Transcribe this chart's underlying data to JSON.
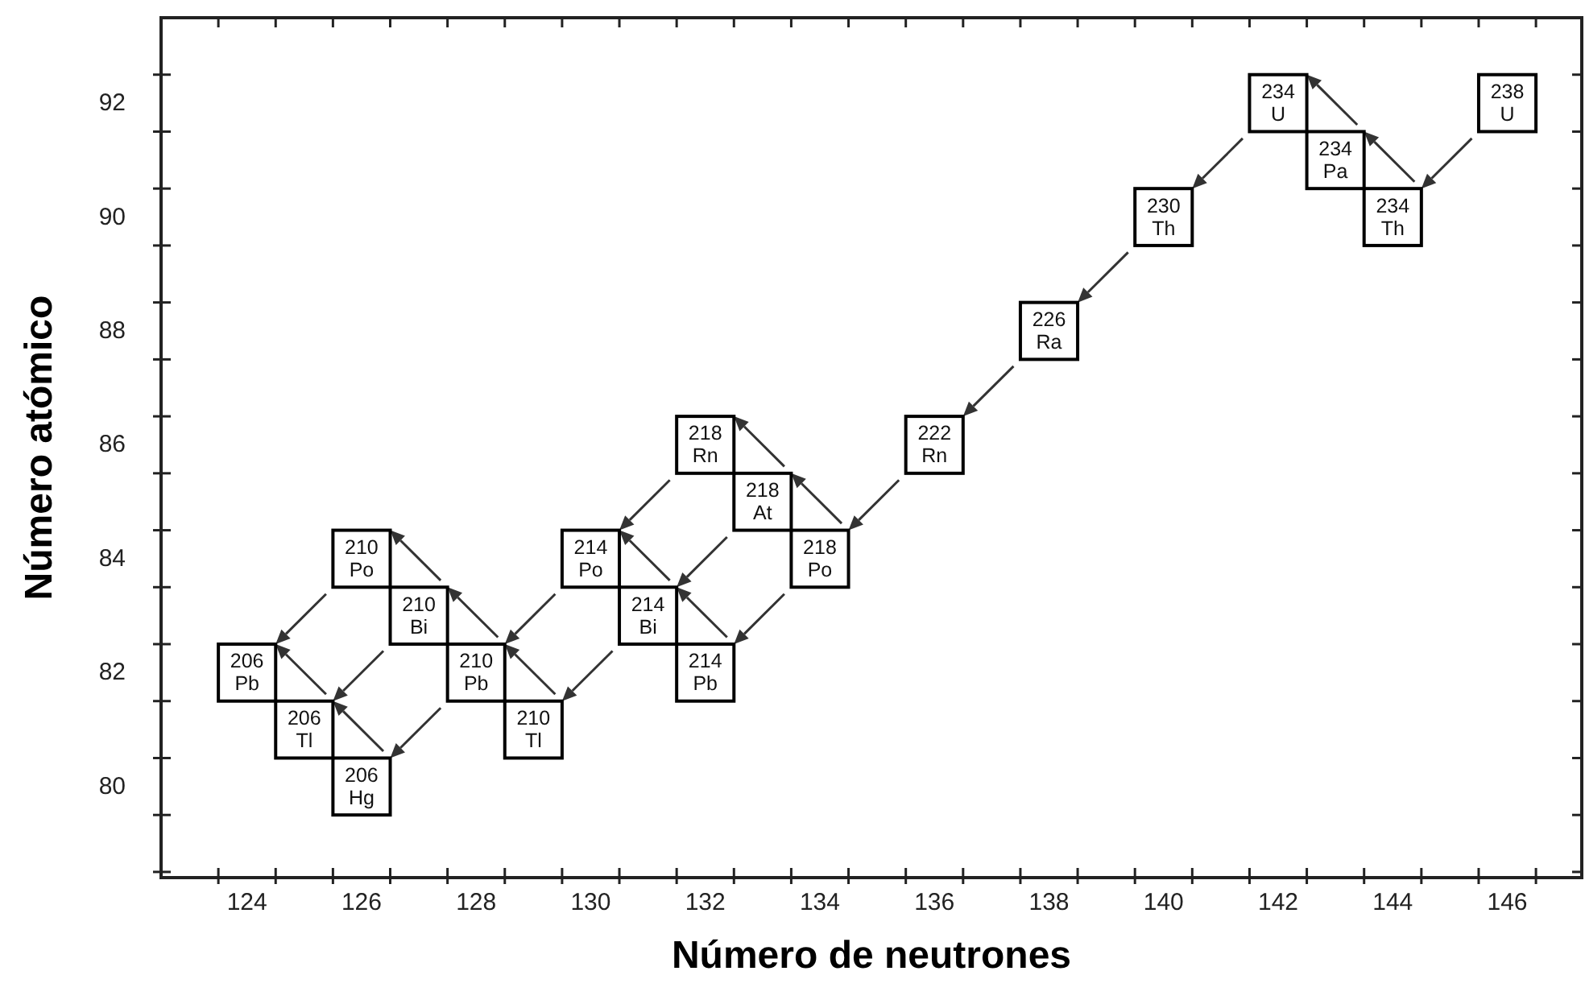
{
  "chart_data": {
    "type": "scatter",
    "xlabel": "Número de neutrones",
    "ylabel": "Número atómico",
    "x": [
      146,
      144,
      143,
      142,
      140,
      138,
      136,
      134,
      133,
      132,
      132,
      131,
      130,
      129,
      128,
      127,
      126,
      126,
      125,
      124
    ],
    "values": [
      92,
      90,
      91,
      92,
      90,
      88,
      86,
      84,
      85,
      86,
      82,
      83,
      84,
      81,
      82,
      83,
      84,
      80,
      81,
      82
    ],
    "color": "#000000",
    "marker": "square",
    "grid": false,
    "xlim": [
      122.5,
      147.3
    ],
    "ylim": [
      78.4,
      93.5
    ],
    "xticks": [
      {
        "value": 123.5,
        "label": null
      },
      124,
      {
        "value": 124.5,
        "label": null
      },
      {
        "value": 125.5,
        "label": null
      },
      126,
      {
        "value": 126.5,
        "label": null
      },
      {
        "value": 127.5,
        "label": null
      },
      128,
      {
        "value": 128.5,
        "label": null
      },
      {
        "value": 129.5,
        "label": null
      },
      130,
      {
        "value": 130.5,
        "label": null
      },
      {
        "value": 131.5,
        "label": null
      },
      132,
      {
        "value": 132.5,
        "label": null
      },
      {
        "value": 133.5,
        "label": null
      },
      134,
      {
        "value": 134.5,
        "label": null
      },
      {
        "value": 135.5,
        "label": null
      },
      136,
      {
        "value": 136.5,
        "label": null
      },
      {
        "value": 137.5,
        "label": null
      },
      138,
      {
        "value": 138.5,
        "label": null
      },
      {
        "value": 139.5,
        "label": null
      },
      140,
      {
        "value": 140.5,
        "label": null
      },
      {
        "value": 141.5,
        "label": null
      },
      142,
      {
        "value": 142.5,
        "label": null
      },
      {
        "value": 143.5,
        "label": null
      },
      144,
      {
        "value": 144.5,
        "label": null
      },
      {
        "value": 145.5,
        "label": null
      },
      146,
      {
        "value": 146.5,
        "label": null
      }
    ],
    "yticks": [
      {
        "value": 78.5,
        "label": null
      },
      {
        "value": 79.5,
        "label": null
      },
      80,
      {
        "value": 80.5,
        "label": null
      },
      {
        "value": 81.5,
        "label": null
      },
      82,
      {
        "value": 82.5,
        "label": null
      },
      {
        "value": 83.5,
        "label": null
      },
      84,
      {
        "value": 84.5,
        "label": null
      },
      {
        "value": 85.5,
        "label": null
      },
      86,
      {
        "value": 86.5,
        "label": null
      },
      {
        "value": 87.5,
        "label": null
      },
      88,
      {
        "value": 88.5,
        "label": null
      },
      {
        "value": 89.5,
        "label": null
      },
      90,
      {
        "value": 90.5,
        "label": null
      },
      {
        "value": 91.5,
        "label": null
      },
      92,
      {
        "value": 92.5,
        "label": null
      }
    ],
    "annotations": [
      {
        "text": "238 U",
        "x": 146,
        "y": 92
      },
      {
        "text": "234 Th",
        "x": 144,
        "y": 90
      },
      {
        "text": "234 Pa",
        "x": 143,
        "y": 91
      },
      {
        "text": "234 U",
        "x": 142,
        "y": 92
      },
      {
        "text": "230 Th",
        "x": 140,
        "y": 90
      },
      {
        "text": "226 Ra",
        "x": 138,
        "y": 88
      },
      {
        "text": "222 Rn",
        "x": 136,
        "y": 86
      },
      {
        "text": "218 Po",
        "x": 134,
        "y": 84
      },
      {
        "text": "218 At",
        "x": 133,
        "y": 85
      },
      {
        "text": "218 Rn",
        "x": 132,
        "y": 86
      },
      {
        "text": "214 Pb",
        "x": 132,
        "y": 82
      },
      {
        "text": "214 Bi",
        "x": 131,
        "y": 83
      },
      {
        "text": "214 Po",
        "x": 130,
        "y": 84
      },
      {
        "text": "210 Tl",
        "x": 129,
        "y": 81
      },
      {
        "text": "210 Pb",
        "x": 128,
        "y": 82
      },
      {
        "text": "210 Bi",
        "x": 127,
        "y": 83
      },
      {
        "text": "210 Po",
        "x": 126,
        "y": 84
      },
      {
        "text": "206 Hg",
        "x": 126,
        "y": 80
      },
      {
        "text": "206 Tl",
        "x": 125,
        "y": 81
      },
      {
        "text": "206 Pb",
        "x": 124,
        "y": 82
      }
    ]
  }
}
